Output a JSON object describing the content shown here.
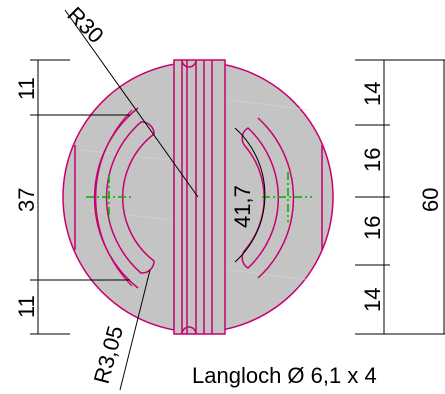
{
  "drawing": {
    "colors": {
      "part_fill": "#c4c4c4",
      "outline": "#c8006e",
      "center_mark": "#00b000",
      "dimension": "#000000"
    },
    "labels": {
      "radius_outer": "R30",
      "radius_slot": "R3,05",
      "angle": "41,7",
      "left_top": "11",
      "left_mid": "37",
      "left_bottom": "11",
      "right_1": "14",
      "right_2": "16",
      "right_3": "16",
      "right_4": "14",
      "overall": "60",
      "note": "Langloch Ø 6,1 x 4"
    }
  }
}
